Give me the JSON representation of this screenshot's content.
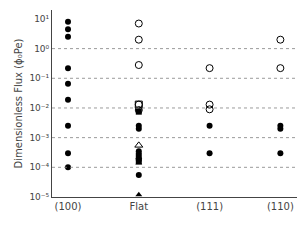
{
  "chart_data": {
    "type": "scatter",
    "y_label": "Dimensionless Flux (ϕ₀Pe)",
    "categories": [
      "(100)",
      "Flat",
      "(111)",
      "(110)"
    ],
    "log": "y",
    "ylim": [
      1e-05,
      20
    ],
    "yticks": [
      {
        "value": 1e-05,
        "label": "10⁻⁵"
      },
      {
        "value": 0.0001,
        "label": "10⁻⁴"
      },
      {
        "value": 0.001,
        "label": "10⁻³"
      },
      {
        "value": 0.01,
        "label": "10⁻²"
      },
      {
        "value": 0.1,
        "label": "10⁻¹"
      },
      {
        "value": 1,
        "label": "10⁰"
      },
      {
        "value": 10,
        "label": "10¹"
      }
    ],
    "grid": false,
    "hlines": [
      1.0,
      0.1,
      0.01,
      0.001,
      0.0001
    ],
    "color": "black",
    "series": [
      {
        "marker": "circle",
        "x": [
          "(100)",
          "(100)",
          "(100)",
          "(100)",
          "(100)",
          "(100)",
          "(100)",
          "(100)",
          "(100)"
        ],
        "values": [
          8.0,
          4.5,
          2.5,
          0.22,
          0.065,
          0.019,
          0.0025,
          0.0003,
          0.0001
        ]
      },
      {
        "marker": "circle-open",
        "x": [
          "Flat",
          "Flat",
          "Flat",
          "Flat",
          "Flat"
        ],
        "values": [
          7.0,
          2.0,
          0.28,
          0.013,
          0.0085
        ]
      },
      {
        "marker": "square-open",
        "x": [
          "Flat"
        ],
        "values": [
          0.013
        ]
      },
      {
        "marker": "square",
        "x": [
          "Flat",
          "Flat",
          "Flat"
        ],
        "values": [
          0.0075,
          0.00025,
          0.00016
        ]
      },
      {
        "marker": "circle",
        "x": [
          "Flat",
          "Flat",
          "Flat",
          "Flat",
          "Flat"
        ],
        "values": [
          0.0025,
          0.002,
          0.00035,
          0.00018,
          5.5e-05
        ]
      },
      {
        "marker": "triangle-up-open",
        "x": [
          "Flat"
        ],
        "values": [
          0.00055
        ]
      },
      {
        "marker": "triangle-up",
        "x": [
          "Flat",
          "Flat",
          "Flat"
        ],
        "values": [
          0.00022,
          0.00014,
          1.2e-05
        ]
      },
      {
        "marker": "circle-open",
        "x": [
          "(111)",
          "(111)",
          "(111)"
        ],
        "values": [
          0.22,
          0.013,
          0.009
        ]
      },
      {
        "marker": "circle",
        "x": [
          "(111)",
          "(111)"
        ],
        "values": [
          0.0025,
          0.0003
        ]
      },
      {
        "marker": "circle-open",
        "x": [
          "(110)",
          "(110)"
        ],
        "values": [
          2.0,
          0.22
        ]
      },
      {
        "marker": "circle",
        "x": [
          "(110)",
          "(110)",
          "(110)"
        ],
        "values": [
          0.0025,
          0.002,
          0.0003
        ]
      }
    ]
  }
}
